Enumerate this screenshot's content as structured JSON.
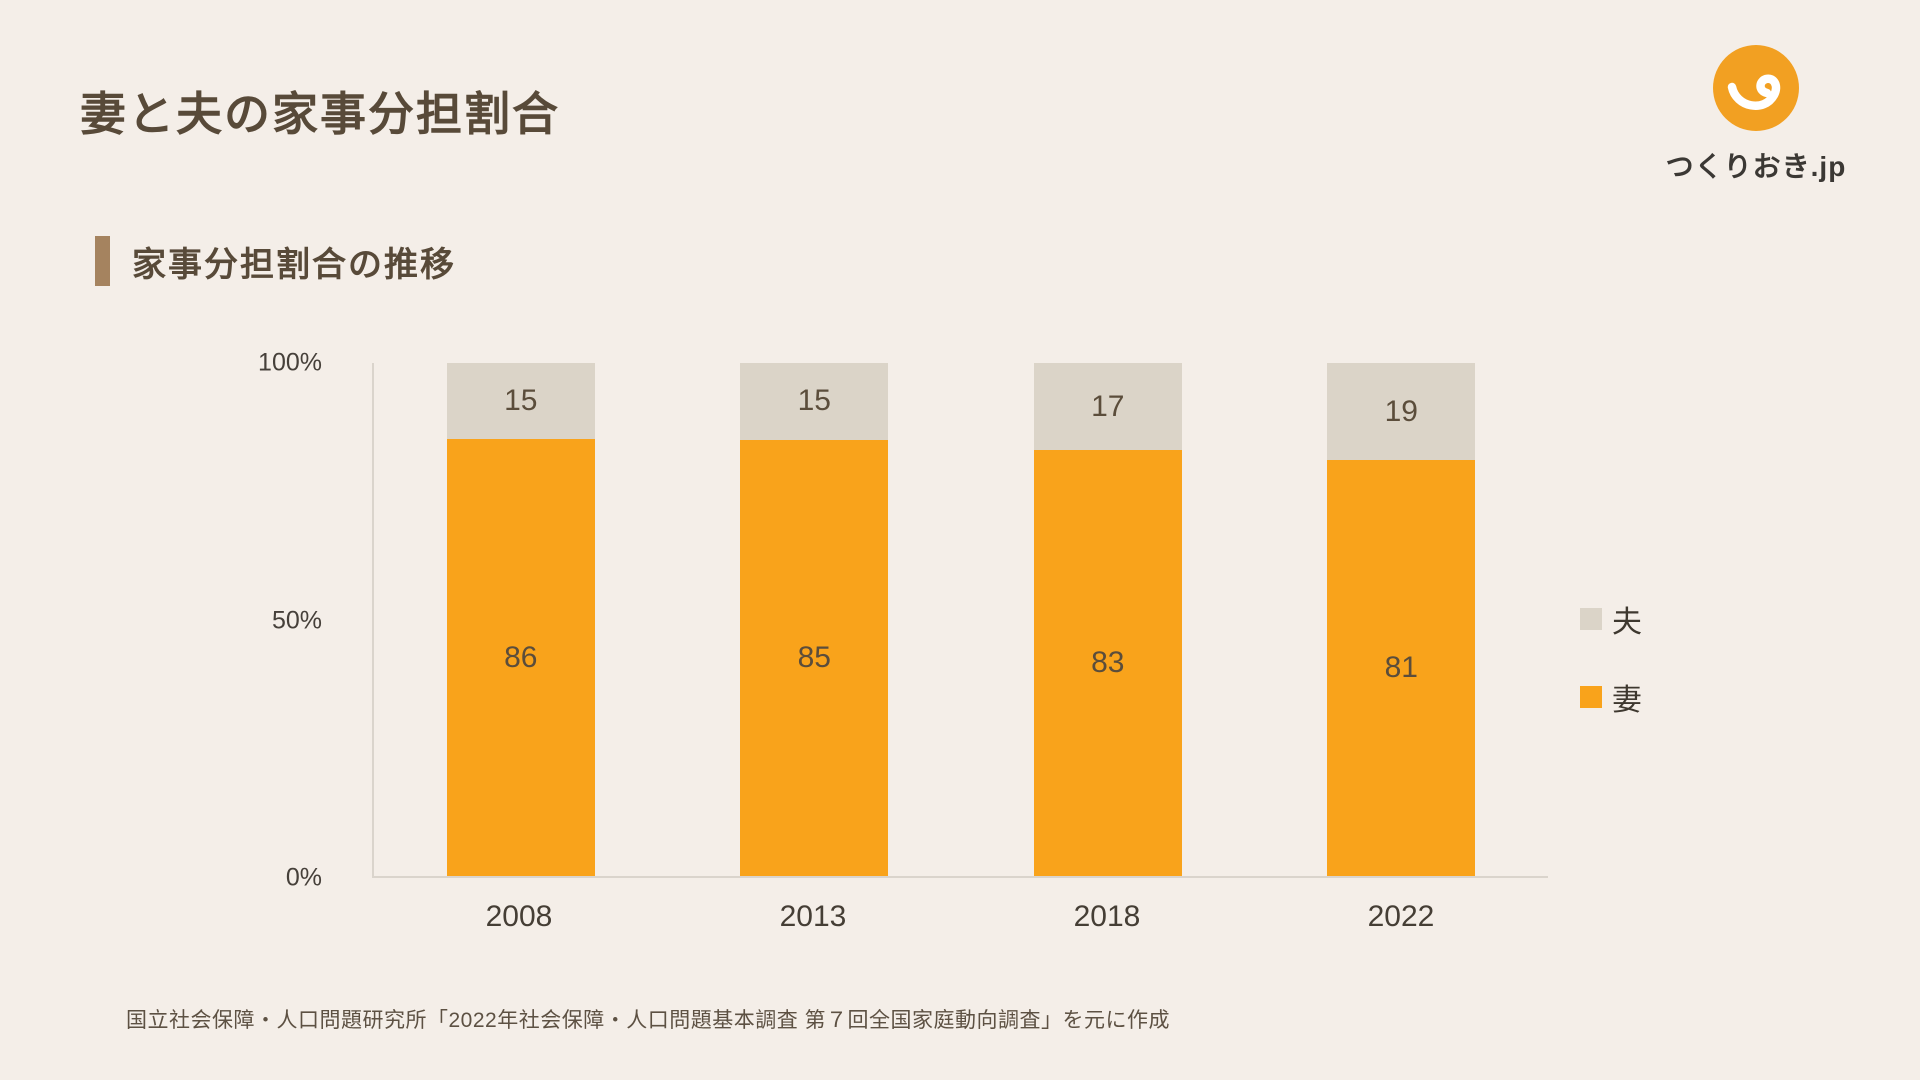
{
  "page": {
    "background": "#F4EEE8"
  },
  "header": {
    "title": "妻と夫の家事分担割合"
  },
  "logo": {
    "brand_text": "つくりおき.jp",
    "icon": "smile-logo",
    "color": "#F2A022"
  },
  "section": {
    "heading": "家事分担割合の推移"
  },
  "chart_data": {
    "type": "bar",
    "variant": "stacked-percent",
    "title": "家事分担割合の推移",
    "categories": [
      "2008",
      "2013",
      "2018",
      "2022"
    ],
    "series": [
      {
        "name": "妻",
        "color": "#F9A31B",
        "values": [
          86,
          85,
          83,
          81
        ]
      },
      {
        "name": "夫",
        "color": "#DBD4C8",
        "values": [
          15,
          15,
          17,
          19
        ]
      }
    ],
    "yticks": [
      "100%",
      "50%",
      "0%"
    ],
    "ylim": [
      0,
      100
    ],
    "grid": false,
    "legend_position": "right",
    "legend": [
      {
        "label": "夫",
        "color": "#DBD4C8"
      },
      {
        "label": "妻",
        "color": "#F9A31B"
      }
    ]
  },
  "source": {
    "text": "国立社会保障・人口問題研究所「2022年社会保障・人口問題基本調査 第７回全国家庭動向調査」を元に作成"
  }
}
